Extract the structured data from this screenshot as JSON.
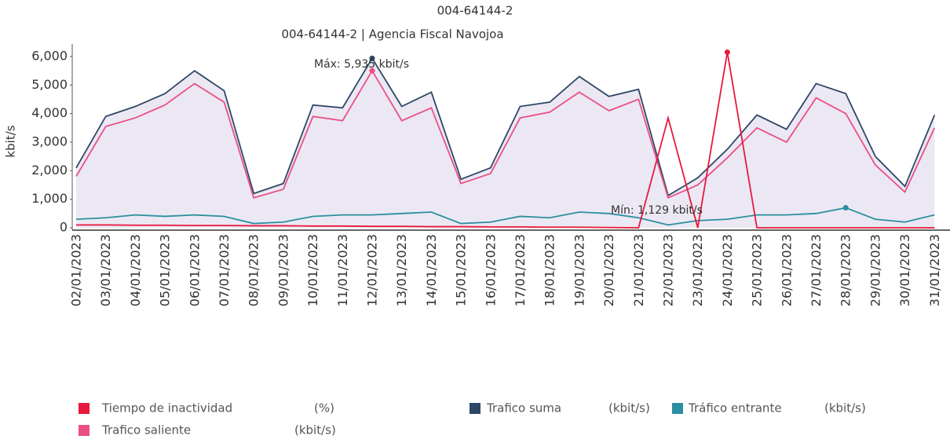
{
  "chart_data": {
    "type": "line",
    "title": "004-64144-2",
    "subtitle": "004-64144-2 | Agencia Fiscal Navojoa",
    "y_label": "kbit/s",
    "categories": [
      "02/01/2023",
      "03/01/2023",
      "04/01/2023",
      "05/01/2023",
      "06/01/2023",
      "07/01/2023",
      "08/01/2023",
      "09/01/2023",
      "10/01/2023",
      "11/01/2023",
      "12/01/2023",
      "13/01/2023",
      "14/01/2023",
      "15/01/2023",
      "16/01/2023",
      "17/01/2023",
      "18/01/2023",
      "19/01/2023",
      "20/01/2023",
      "21/01/2023",
      "22/01/2023",
      "23/01/2023",
      "24/01/2023",
      "25/01/2023",
      "26/01/2023",
      "27/01/2023",
      "28/01/2023",
      "29/01/2023",
      "30/01/2023",
      "31/01/2023"
    ],
    "ylim": [
      0,
      6300
    ],
    "yticks": [
      0,
      {
        "value": 1000,
        "label": "1,000"
      },
      {
        "value": 2000,
        "label": "2,000"
      },
      {
        "value": 3000,
        "label": "3,000"
      },
      {
        "value": 4000,
        "label": "4,000"
      },
      {
        "value": 5000,
        "label": "5,000"
      },
      {
        "value": 6000,
        "label": "6,000"
      }
    ],
    "annotations": [
      "Máx: 5,935 kbit/s",
      "Mín: 1,129 kbit/s"
    ],
    "series": [
      {
        "name": "Tiempo de inactividad",
        "unit": "(%)",
        "color": "#e8183c",
        "values": [
          100,
          100,
          90,
          90,
          80,
          80,
          70,
          70,
          60,
          60,
          50,
          50,
          40,
          40,
          30,
          30,
          20,
          20,
          10,
          0,
          3850,
          0,
          6150,
          0,
          0,
          0,
          0,
          0,
          0,
          0
        ]
      },
      {
        "name": "Trafico saliente",
        "unit": "(kbit/s)",
        "color": "#ea4f86",
        "values": [
          1800,
          3550,
          3850,
          4300,
          5050,
          4400,
          1050,
          1350,
          3900,
          3750,
          5500,
          3750,
          4200,
          1550,
          1900,
          3850,
          4050,
          4750,
          4100,
          4500,
          1050,
          1500,
          2450,
          3500,
          3000,
          4550,
          4000,
          2200,
          1250,
          3500
        ]
      },
      {
        "name": "Trafico suma",
        "unit": "(kbit/s)",
        "color": "#2d4766",
        "fill": "#ece8f3",
        "values": [
          2100,
          3900,
          4250,
          4700,
          5500,
          4800,
          1200,
          1550,
          4300,
          4200,
          5935,
          4250,
          4750,
          1700,
          2100,
          4250,
          4400,
          5300,
          4600,
          4850,
          1129,
          1750,
          2750,
          3950,
          3450,
          5050,
          4700,
          2500,
          1450,
          3950
        ]
      },
      {
        "name": "Tráfico entrante",
        "unit": "(kbit/s)",
        "color": "#2a8fa0",
        "values": [
          300,
          350,
          450,
          400,
          450,
          400,
          150,
          200,
          400,
          450,
          450,
          500,
          550,
          150,
          200,
          400,
          350,
          550,
          500,
          350,
          100,
          250,
          300,
          450,
          450,
          500,
          700,
          300,
          200,
          450
        ]
      }
    ]
  }
}
